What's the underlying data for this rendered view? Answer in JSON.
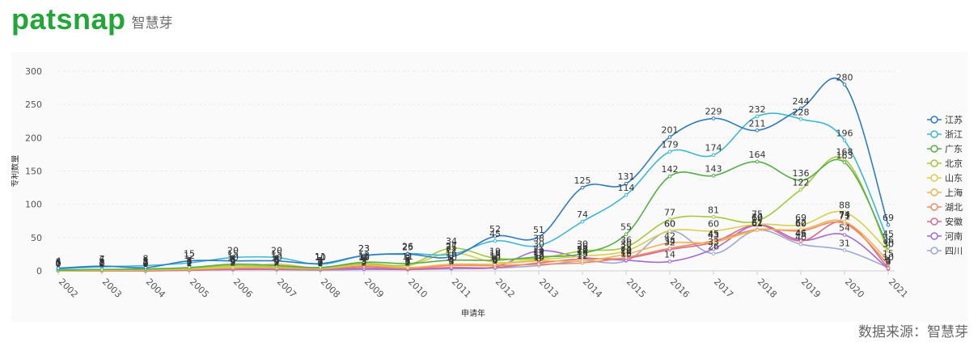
{
  "brand": {
    "wordmark": "patsnap",
    "cn": "智慧芽"
  },
  "source_text": "数据来源：智慧芽",
  "colors": {
    "brand_green": "#23a638",
    "grid": "#e9e9e9",
    "axis_text": "#555555"
  },
  "chart_data": {
    "type": "line",
    "title": "",
    "xlabel": "申请年",
    "ylabel": "专利数量",
    "ylim": [
      0,
      300
    ],
    "yticks": [
      0,
      50,
      100,
      150,
      200,
      250,
      300
    ],
    "grid": true,
    "legend_position": "right",
    "categories": [
      "2002",
      "2003",
      "2004",
      "2005",
      "2006",
      "2007",
      "2008",
      "2009",
      "2010",
      "2011",
      "2012",
      "2013",
      "2014",
      "2015",
      "2016",
      "2017",
      "2018",
      "2019",
      "2020",
      "2021"
    ],
    "series": [
      {
        "name": "江苏",
        "color": "#2e7bc4",
        "values": [
          4,
          7,
          5,
          15,
          15,
          15,
          11,
          23,
          25,
          21,
          52,
          51,
          125,
          131,
          201,
          229,
          211,
          244,
          280,
          69
        ]
      },
      {
        "name": "浙江",
        "color": "#3db8d6",
        "values": [
          3,
          6,
          8,
          12,
          20,
          20,
          10,
          23,
          26,
          25,
          45,
          38,
          74,
          114,
          179,
          174,
          232,
          228,
          196,
          45
        ]
      },
      {
        "name": "广东",
        "color": "#55b046",
        "values": [
          1,
          2,
          3,
          5,
          10,
          8,
          5,
          13,
          11,
          16,
          16,
          21,
          26,
          55,
          142,
          143,
          164,
          136,
          163,
          36
        ]
      },
      {
        "name": "北京",
        "color": "#a7c83c",
        "values": [
          1,
          2,
          2,
          4,
          8,
          6,
          5,
          11,
          9,
          34,
          19,
          19,
          30,
          36,
          77,
          81,
          75,
          122,
          168,
          30
        ]
      },
      {
        "name": "山东",
        "color": "#d8d04b",
        "values": [
          0,
          1,
          2,
          3,
          6,
          5,
          4,
          10,
          8,
          27,
          13,
          17,
          22,
          30,
          60,
          60,
          70,
          69,
          88,
          30
        ]
      },
      {
        "name": "上海",
        "color": "#f2b355",
        "values": [
          0,
          1,
          1,
          3,
          5,
          10,
          4,
          9,
          5,
          10,
          10,
          15,
          15,
          25,
          42,
          43,
          61,
          62,
          74,
          15
        ]
      },
      {
        "name": "湖北",
        "color": "#f08a63",
        "values": [
          0,
          0,
          1,
          2,
          4,
          4,
          3,
          7,
          4,
          8,
          8,
          10,
          12,
          20,
          34,
          45,
          62,
          60,
          71,
          10
        ]
      },
      {
        "name": "安徽",
        "color": "#dd6b87",
        "values": [
          0,
          0,
          0,
          1,
          3,
          3,
          2,
          5,
          3,
          5,
          5,
          12,
          18,
          19,
          32,
          43,
          69,
          45,
          73,
          4
        ]
      },
      {
        "name": "河南",
        "color": "#a868d8",
        "values": [
          0,
          0,
          0,
          1,
          2,
          2,
          2,
          3,
          2,
          4,
          6,
          30,
          20,
          16,
          14,
          33,
          69,
          46,
          54,
          3
        ]
      },
      {
        "name": "四川",
        "color": "#9ba9da",
        "values": [
          0,
          0,
          0,
          1,
          2,
          2,
          1,
          2,
          2,
          3,
          4,
          8,
          15,
          15,
          60,
          26,
          61,
          40,
          31,
          5
        ]
      }
    ]
  }
}
